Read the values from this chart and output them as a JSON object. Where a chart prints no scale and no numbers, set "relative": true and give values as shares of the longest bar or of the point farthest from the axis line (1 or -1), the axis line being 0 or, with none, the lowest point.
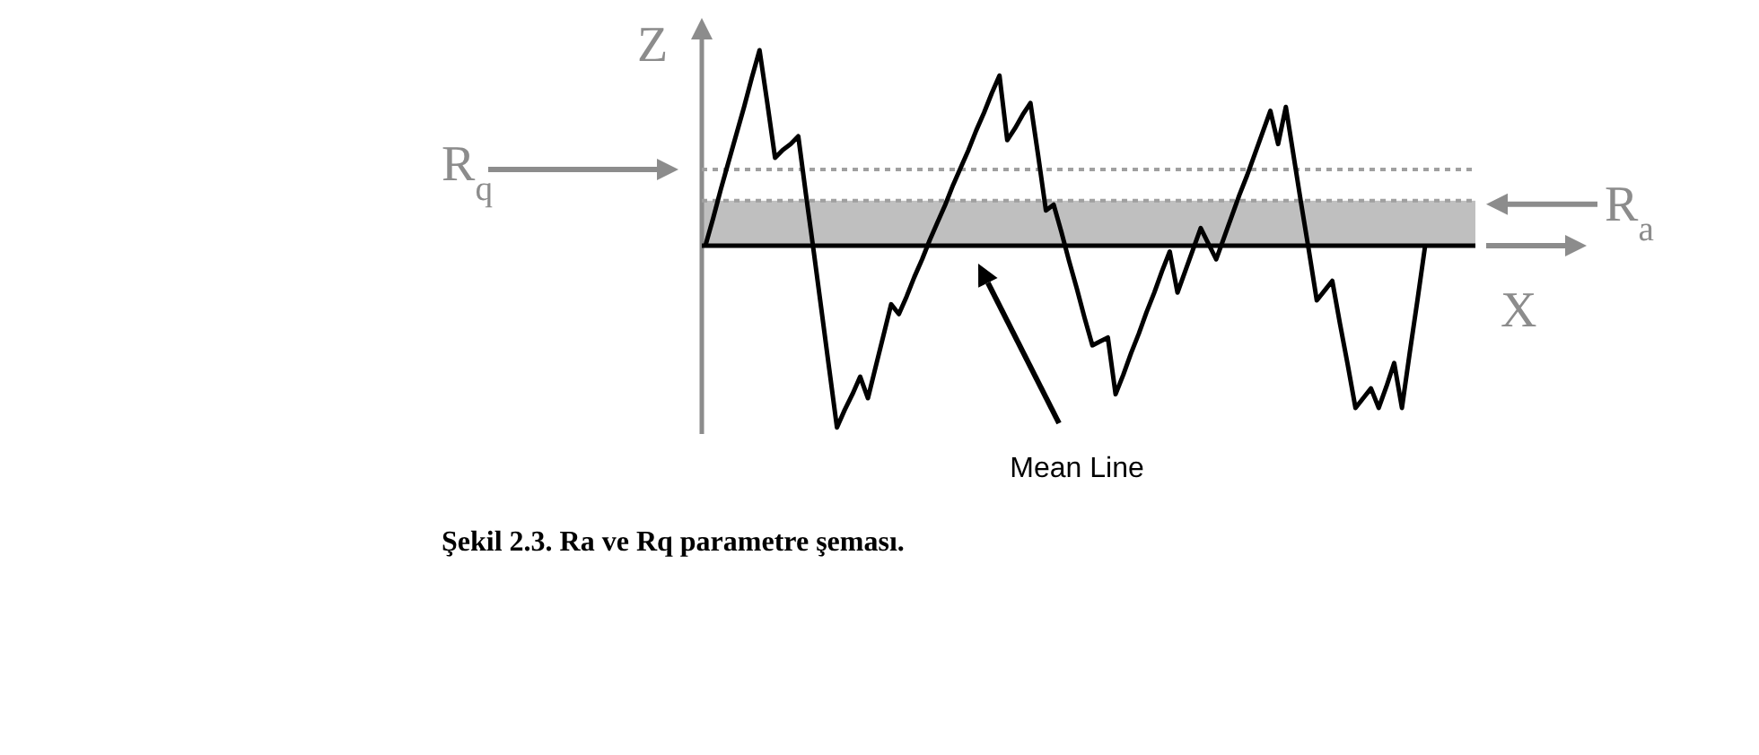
{
  "chart_data": {
    "type": "line",
    "relative": true,
    "xlabel": "X",
    "ylabel": "Z",
    "categories": [
      null,
      null,
      null,
      null,
      null,
      null,
      null,
      null,
      null,
      null,
      null,
      null,
      null,
      null,
      null,
      null,
      null,
      null,
      null,
      null,
      null,
      null,
      null,
      null,
      null,
      null,
      null,
      null,
      null,
      null,
      null,
      null,
      null,
      null,
      null,
      null,
      null,
      null,
      null,
      null,
      null,
      null,
      null,
      null,
      null,
      null,
      null,
      null,
      null,
      null,
      null,
      null,
      null,
      null,
      null,
      null,
      null,
      null,
      null,
      null,
      null,
      null,
      null,
      null,
      null,
      null,
      null,
      null,
      null,
      null,
      null,
      null,
      null,
      null,
      null,
      null,
      null,
      null,
      null,
      null,
      null,
      null,
      null,
      null,
      null,
      null,
      null,
      null,
      null,
      null,
      null,
      null,
      null,
      null
    ],
    "series": [
      {
        "color": "#000000",
        "values": [
          0,
          0.14,
          0.29,
          0.43,
          0.57,
          0.71,
          0.86,
          1,
          0.73,
          0.45,
          0.49,
          0.52,
          0.56,
          0.26,
          -0.03,
          -0.33,
          -0.63,
          -0.93,
          -0.84,
          -0.76,
          -0.67,
          -0.78,
          -0.62,
          -0.46,
          -0.3,
          -0.35,
          -0.26,
          -0.16,
          -0.07,
          0.03,
          0.12,
          0.21,
          0.31,
          0.4,
          0.49,
          0.59,
          0.68,
          0.78,
          0.87,
          0.54,
          0.6,
          0.67,
          0.73,
          0.46,
          0.18,
          0.21,
          0.07,
          -0.08,
          -0.22,
          -0.37,
          -0.51,
          -0.49,
          -0.47,
          -0.76,
          -0.66,
          -0.55,
          -0.45,
          -0.34,
          -0.24,
          -0.13,
          -0.03,
          -0.24,
          -0.13,
          -0.02,
          0.09,
          0.01,
          -0.07,
          0.04,
          0.15,
          0.26,
          0.36,
          0.47,
          0.58,
          0.69,
          0.52,
          0.71,
          0.46,
          0.21,
          -0.03,
          -0.28,
          -0.23,
          -0.18,
          -0.4,
          -0.61,
          -0.83,
          -0.78,
          -0.73,
          -0.83,
          -0.72,
          -0.6,
          -0.83,
          -0.55,
          -0.28,
          0
        ]
      }
    ],
    "bands": [
      {
        "axis": "y",
        "from": 0,
        "to": 0.23,
        "label": "R$_{a}$",
        "color": "#bfbfbf"
      }
    ],
    "ref_lines": [
      {
        "axis": "y",
        "value": 0.39,
        "label": "R$_{q}$",
        "color": "#a0a0a0",
        "line_style": "dotted"
      },
      {
        "axis": "y",
        "value": 0.23,
        "color": "#a0a0a0",
        "line_style": "dotted"
      },
      {
        "axis": "y",
        "value": 0,
        "label": "Mean Line",
        "color": "#000000",
        "line_style": "solid"
      }
    ],
    "annotations": [
      "Şekil 2.3. Ra ve Rq parametre şeması."
    ]
  }
}
